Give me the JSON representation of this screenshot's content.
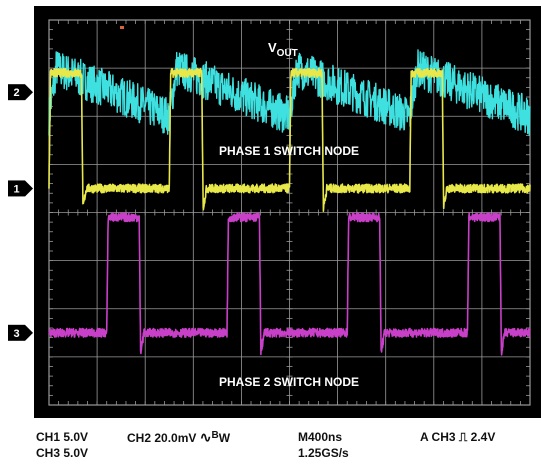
{
  "chart_data": {
    "type": "line",
    "title": "",
    "xlabel": "",
    "ylabel": "",
    "grid": true,
    "x_divisions": 10,
    "y_divisions": 8,
    "xlim_ns": [
      0,
      4000
    ],
    "period_ns": 1000,
    "colors": {
      "background": "#000000",
      "grid": "#9a9a9a",
      "ch1": "#e8e84a",
      "ch2": "#3fe0e0",
      "ch3": "#c840c8"
    },
    "annotations": {
      "vout": "V",
      "vout_sub": "OUT",
      "phase1": "PHASE 1 SWITCH NODE",
      "phase2": "PHASE 2 SWITCH NODE"
    },
    "series": [
      {
        "name": "2",
        "channel": "CH2",
        "coupling": "AC",
        "scale_per_div": "20.0mV",
        "ground_div": 2.5,
        "shape": "ripple",
        "ripple_mV_pp": 20,
        "period_ns": 1000,
        "phase_ns": 0,
        "color": "#3fe0e0"
      },
      {
        "name": "1",
        "channel": "CH1",
        "scale_per_div": "5.0V",
        "ground_div": 0.5,
        "shape": "pulse",
        "high_V": 12,
        "low_V": 0,
        "period_ns": 1000,
        "phase_ns": 0,
        "width_ns": 270,
        "color": "#e8e84a"
      },
      {
        "name": "3",
        "channel": "CH3",
        "scale_per_div": "5.0V",
        "ground_div": -2.5,
        "shape": "pulse",
        "high_V": 12,
        "low_V": 0,
        "period_ns": 1000,
        "phase_ns": 480,
        "width_ns": 270,
        "color": "#c840c8"
      }
    ]
  },
  "status": {
    "ch1": "CH1  5.0V",
    "ch3": "CH3  5.0V",
    "ch2_label": "CH2  20.0mV",
    "bw_symbol": "∿",
    "bw_b": "B",
    "bw_w": "W",
    "timebase": "M400ns",
    "sample_rate": "1.25GS/s",
    "trigger": "A  CH3",
    "trigger_edge": "⎍",
    "trigger_level": "2.4V"
  }
}
